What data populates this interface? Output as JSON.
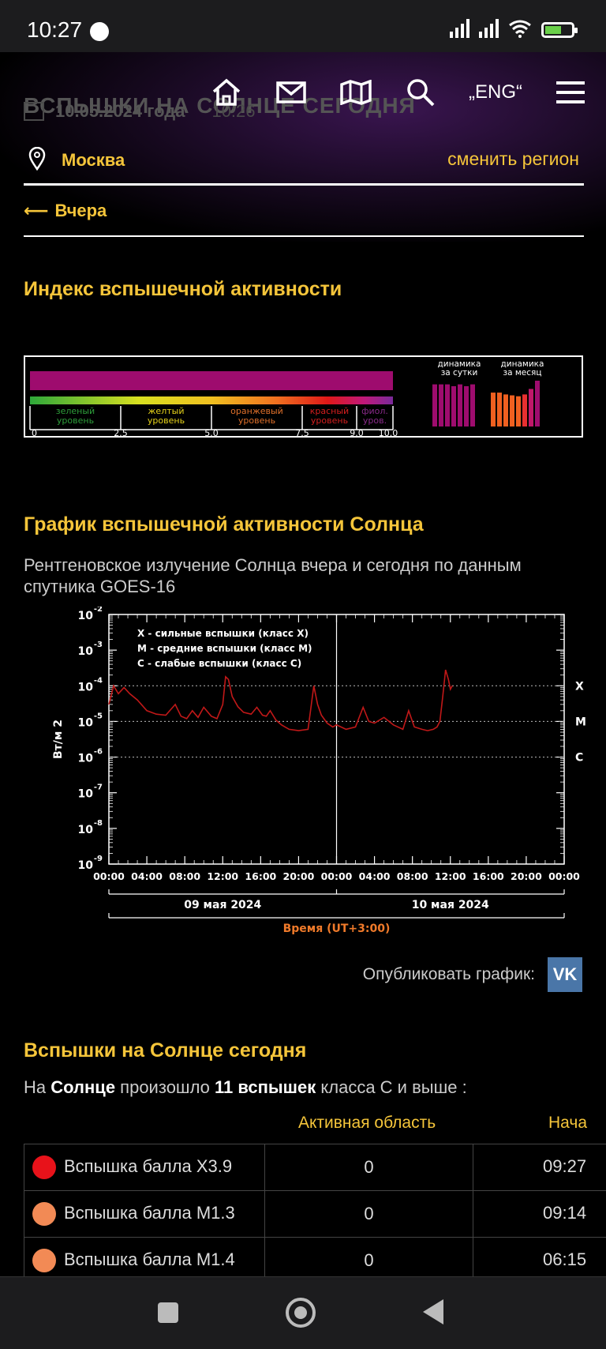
{
  "status_bar": {
    "time": "10:27"
  },
  "header": {
    "ghost_title": "ВСПЫШКИ НА СОЛНЦЕ СЕГОДНЯ",
    "ghost_date": "10.05.2024 года",
    "ghost_time": "10:26",
    "lang_label": "„ENG“"
  },
  "region": {
    "city": "Москва",
    "change_label": "сменить регион"
  },
  "back_link": {
    "label": "Вчера"
  },
  "index_section": {
    "title": "Индекс вспышечной активности",
    "index_value": 10.0,
    "scale_ticks": [
      "0",
      "2.5",
      "5.0",
      "7.5",
      "9.0",
      "10.0"
    ],
    "levels": [
      {
        "line1": "зеленый",
        "line2": "уровень",
        "color": "#2e9e3a"
      },
      {
        "line1": "желтый",
        "line2": "уровень",
        "color": "#e6d21a"
      },
      {
        "line1": "оранжевый",
        "line2": "уровень",
        "color": "#e0702a"
      },
      {
        "line1": "красный",
        "line2": "уровень",
        "color": "#d41e1e"
      },
      {
        "line1": "фиол.",
        "line2": "уров.",
        "color": "#8a2a8a"
      }
    ],
    "daily_label_1": "динамика",
    "daily_label_2": "за сутки",
    "monthly_label_1": "динамика",
    "monthly_label_2": "за месяц",
    "daily_levels": [
      0.92,
      0.92,
      0.92,
      0.88,
      0.92,
      0.88,
      0.92
    ],
    "monthly_levels": [
      0.74,
      0.74,
      0.7,
      0.68,
      0.66,
      0.7,
      0.82,
      1.0
    ],
    "bar_color": "#9e0c6e"
  },
  "graph_section": {
    "title": "График вспышечной активности Солнца",
    "description": "Рентгеновское излучение Солнца вчера и сегодня по данным спутника GOES-16"
  },
  "chart_data": {
    "type": "line",
    "y_scale": "log",
    "ylim": [
      1e-09,
      0.01
    ],
    "y_ticks": [
      "-2",
      "-3",
      "-4",
      "-5",
      "-6",
      "-7",
      "-8",
      "-9"
    ],
    "y_tick_base": "10",
    "ylabel": "Вт/м 2",
    "x_ticks": [
      "00:00",
      "04:00",
      "08:00",
      "12:00",
      "16:00",
      "20:00",
      "00:00",
      "04:00",
      "08:00",
      "12:00",
      "16:00",
      "20:00",
      "00:00"
    ],
    "xlim_hours": [
      0,
      48
    ],
    "date_labels": [
      "09 мая 2024",
      "10 мая 2024"
    ],
    "xlabel": "Время (UT+3:00)",
    "class_lines": [
      {
        "label": "X",
        "value": 0.0001
      },
      {
        "label": "M",
        "value": 1e-05
      },
      {
        "label": "C",
        "value": 1e-06
      }
    ],
    "legend": [
      "X - сильные вспышки (класс X)",
      "M - средние вспышки (класс M)",
      "C - слабые вспышки (класс C)"
    ],
    "series_color": "#c01818",
    "series": [
      {
        "x_hours": [
          0.0,
          0.5,
          1.0,
          1.6,
          2.2,
          3.0,
          4.0,
          5.0,
          6.0,
          7.0,
          7.6,
          8.2,
          8.8,
          9.4,
          10.0,
          10.8,
          11.4,
          12.0,
          12.3,
          12.6,
          13.0,
          13.6,
          14.2,
          15.0,
          15.6,
          16.2,
          16.6,
          17.0,
          17.6,
          18.2,
          19.0,
          20.0,
          21.0,
          21.6,
          22.0,
          22.4,
          23.0,
          23.6,
          24.0,
          25.0,
          26.0,
          26.8,
          27.4,
          28.0,
          29.0,
          30.0,
          31.0,
          31.6,
          32.2,
          33.0,
          33.6,
          34.2,
          34.6,
          34.9,
          35.2,
          35.5,
          35.8,
          36.0,
          36.2
        ],
        "y_values": [
          3e-05,
          0.0001,
          6e-05,
          9e-05,
          6e-05,
          4e-05,
          2e-05,
          1.6e-05,
          1.5e-05,
          3e-05,
          1.4e-05,
          1.2e-05,
          2e-05,
          1.3e-05,
          2.5e-05,
          1.4e-05,
          1.2e-05,
          3e-05,
          0.00018,
          0.00015,
          5e-05,
          2.6e-05,
          1.8e-05,
          1.6e-05,
          2.5e-05,
          1.5e-05,
          1.4e-05,
          2e-05,
          1.1e-05,
          8e-06,
          6e-06,
          5.5e-06,
          6e-06,
          0.0001,
          3e-05,
          1.5e-05,
          9e-06,
          7e-06,
          8e-06,
          6e-06,
          7e-06,
          2.5e-05,
          1e-05,
          9e-06,
          1.3e-05,
          8e-06,
          6e-06,
          2e-05,
          7e-06,
          6e-06,
          5.5e-06,
          6e-06,
          7e-06,
          1e-05,
          5e-05,
          0.00028,
          0.00015,
          8e-05,
          0.0001
        ]
      }
    ]
  },
  "publish": {
    "label": "Опубликовать график:",
    "vk": "VK"
  },
  "flares_section": {
    "title": "Вспышки на Солнце сегодня",
    "summary_pre": "На ",
    "summary_sun": "Солнце",
    "summary_mid": " произошло ",
    "summary_count": "11 вспышек",
    "summary_post": " класса С и выше :",
    "col_area": "Активная область",
    "col_start": "Нача",
    "rows": [
      {
        "name": "Вспышка балла X3.9",
        "area": "0",
        "start": "09:27",
        "color": "#e8121a"
      },
      {
        "name": "Вспышка балла M1.3",
        "area": "0",
        "start": "09:14",
        "color": "#f28a55"
      },
      {
        "name": "Вспышка балла M1.4",
        "area": "0",
        "start": "06:15",
        "color": "#f28a55"
      }
    ]
  }
}
